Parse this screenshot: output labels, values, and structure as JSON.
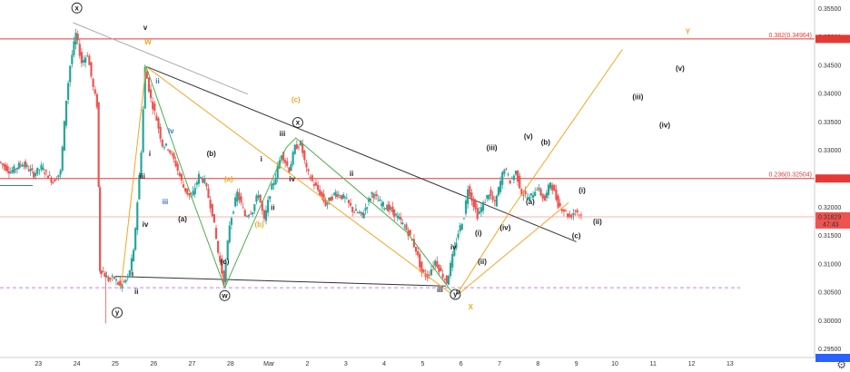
{
  "chart_data": {
    "type": "candlestick",
    "x_ticks": [
      "23",
      "24",
      "25",
      "26",
      "27",
      "28",
      "Mar",
      "2",
      "3",
      "4",
      "5",
      "6",
      "7",
      "8",
      "9",
      "10",
      "11",
      "12",
      "13"
    ],
    "y_ticks": [
      "0.35500",
      "0.35000",
      "0.34500",
      "0.34000",
      "0.33500",
      "0.33000",
      "0.32500",
      "0.32000",
      "0.31500",
      "0.31000",
      "0.30500",
      "0.30000",
      "0.29500"
    ],
    "ylim": [
      0.2935,
      0.3565
    ],
    "last_price": {
      "label": "0.31829",
      "value": 0.31829,
      "countdown": "47:43"
    },
    "fib_levels": [
      {
        "label": "0.382(0.34964)",
        "value": 0.34964
      },
      {
        "label": "0.236(0.32504)",
        "value": 0.32504
      }
    ],
    "support_level": 0.3058,
    "price_path": [
      [
        22.0,
        0.328
      ],
      [
        22.3,
        0.3262
      ],
      [
        22.6,
        0.3278
      ],
      [
        22.9,
        0.3258
      ],
      [
        23.1,
        0.327
      ],
      [
        23.4,
        0.3245
      ],
      [
        23.6,
        0.3262
      ],
      [
        23.75,
        0.339
      ],
      [
        23.85,
        0.345
      ],
      [
        24.0,
        0.3505
      ],
      [
        24.15,
        0.3455
      ],
      [
        24.3,
        0.347
      ],
      [
        24.45,
        0.341
      ],
      [
        24.55,
        0.338
      ],
      [
        24.62,
        0.309
      ],
      [
        24.7,
        0.3085
      ],
      [
        24.85,
        0.3072
      ],
      [
        25.0,
        0.3075
      ],
      [
        25.15,
        0.306
      ],
      [
        25.35,
        0.3075
      ],
      [
        25.5,
        0.312
      ],
      [
        25.6,
        0.321
      ],
      [
        25.7,
        0.33
      ],
      [
        25.8,
        0.3445
      ],
      [
        25.95,
        0.339
      ],
      [
        26.1,
        0.3355
      ],
      [
        26.25,
        0.331
      ],
      [
        26.4,
        0.3305
      ],
      [
        26.6,
        0.3275
      ],
      [
        26.8,
        0.3235
      ],
      [
        27.0,
        0.3215
      ],
      [
        27.2,
        0.3255
      ],
      [
        27.35,
        0.3245
      ],
      [
        27.55,
        0.319
      ],
      [
        27.7,
        0.312
      ],
      [
        27.85,
        0.3068
      ],
      [
        28.0,
        0.317
      ],
      [
        28.2,
        0.3225
      ],
      [
        28.4,
        0.3185
      ],
      [
        28.6,
        0.3195
      ],
      [
        28.75,
        0.3225
      ],
      [
        28.9,
        0.3175
      ],
      [
        29.05,
        0.3225
      ],
      [
        29.2,
        0.3255
      ],
      [
        29.35,
        0.3295
      ],
      [
        29.55,
        0.3265
      ],
      [
        29.7,
        0.3305
      ],
      [
        29.85,
        0.3312
      ],
      [
        30.0,
        0.3265
      ],
      [
        30.15,
        0.3245
      ],
      [
        30.35,
        0.3225
      ],
      [
        30.5,
        0.3205
      ],
      [
        30.75,
        0.3225
      ],
      [
        31.0,
        0.3215
      ],
      [
        31.2,
        0.3195
      ],
      [
        31.45,
        0.3185
      ],
      [
        31.7,
        0.3225
      ],
      [
        31.95,
        0.3205
      ],
      [
        32.2,
        0.3195
      ],
      [
        32.45,
        0.3175
      ],
      [
        32.65,
        0.3155
      ],
      [
        32.85,
        0.3125
      ],
      [
        33.0,
        0.3085
      ],
      [
        33.15,
        0.3078
      ],
      [
        33.35,
        0.3105
      ],
      [
        33.5,
        0.3085
      ],
      [
        33.65,
        0.3068
      ],
      [
        33.8,
        0.3112
      ],
      [
        33.95,
        0.3155
      ],
      [
        34.1,
        0.3185
      ],
      [
        34.2,
        0.3235
      ],
      [
        34.35,
        0.3205
      ],
      [
        34.45,
        0.3185
      ],
      [
        34.6,
        0.3205
      ],
      [
        34.75,
        0.3225
      ],
      [
        34.9,
        0.3205
      ],
      [
        35.05,
        0.3245
      ],
      [
        35.15,
        0.327
      ],
      [
        35.3,
        0.3245
      ],
      [
        35.45,
        0.3262
      ],
      [
        35.6,
        0.3225
      ],
      [
        35.8,
        0.3215
      ],
      [
        36.0,
        0.3235
      ],
      [
        36.2,
        0.3212
      ],
      [
        36.35,
        0.3245
      ],
      [
        36.55,
        0.3205
      ],
      [
        36.7,
        0.3195
      ],
      [
        36.85,
        0.3182
      ],
      [
        37.0,
        0.3195
      ],
      [
        37.15,
        0.3185
      ]
    ],
    "trend_lines": [
      {
        "points": [
          [
            23.9,
            0.3525
          ],
          [
            28.45,
            0.3399
          ]
        ],
        "color": "#aaaaaa"
      },
      {
        "points": [
          [
            25.8,
            0.3448
          ],
          [
            37.0,
            0.3139
          ]
        ],
        "color": "#333333"
      },
      {
        "points": [
          [
            25.0,
            0.3078
          ],
          [
            33.6,
            0.3061
          ]
        ],
        "color": "#333333"
      }
    ],
    "wave_paths": [
      {
        "points": [
          [
            25.15,
            0.3058
          ],
          [
            25.8,
            0.3448
          ],
          [
            33.85,
            0.3042
          ],
          [
            36.8,
            0.3208
          ]
        ],
        "color": "#f5a623"
      },
      {
        "points": [
          [
            33.85,
            0.3042
          ],
          [
            35.3,
            0.3195
          ],
          [
            38.2,
            0.3478
          ]
        ],
        "color": "#f5a623"
      },
      {
        "points": [
          [
            25.8,
            0.3448
          ],
          [
            27.0,
            0.3215
          ],
          [
            27.85,
            0.3058
          ],
          [
            29.45,
            0.3305
          ],
          [
            29.7,
            0.3322
          ],
          [
            32.6,
            0.3155
          ],
          [
            33.85,
            0.3042
          ]
        ],
        "color": "#4caf50"
      }
    ],
    "wave_labels": [
      {
        "text": "(x)",
        "x": 24.0,
        "y": 0.3547,
        "circle": true,
        "color": "#222222"
      },
      {
        "text": "v",
        "x": 25.78,
        "y": 0.3512,
        "color": "#222222"
      },
      {
        "text": "W",
        "x": 25.85,
        "y": 0.3487,
        "color": "#f5a623"
      },
      {
        "text": "ii",
        "x": 26.1,
        "y": 0.3418,
        "color": "#4169e1"
      },
      {
        "text": "iv",
        "x": 26.45,
        "y": 0.333,
        "color": "#4169e1"
      },
      {
        "text": "iii",
        "x": 25.7,
        "y": 0.325,
        "color": "#222222"
      },
      {
        "text": "i",
        "x": 25.9,
        "y": 0.329,
        "color": "#222222"
      },
      {
        "text": "iii",
        "x": 26.3,
        "y": 0.3205,
        "color": "#4169e1"
      },
      {
        "text": "iv",
        "x": 25.78,
        "y": 0.3165,
        "color": "#222222"
      },
      {
        "text": "i",
        "x": 25.45,
        "y": 0.3078,
        "color": "#222222"
      },
      {
        "text": "ii",
        "x": 25.55,
        "y": 0.3047,
        "color": "#222222"
      },
      {
        "text": "(y)",
        "x": 25.05,
        "y": 0.301,
        "circle": true,
        "color": "#222222"
      },
      {
        "text": "(b)",
        "x": 27.5,
        "y": 0.329,
        "color": "#222222"
      },
      {
        "text": "(a)",
        "x": 26.75,
        "y": 0.3175,
        "color": "#222222"
      },
      {
        "text": "(a)",
        "x": 27.95,
        "y": 0.3245,
        "color": "#f5a623"
      },
      {
        "text": "(c)",
        "x": 27.85,
        "y": 0.31,
        "color": "#222222"
      },
      {
        "text": "(w)",
        "x": 27.85,
        "y": 0.304,
        "circle": true,
        "color": "#222222"
      },
      {
        "text": "(b)",
        "x": 28.75,
        "y": 0.3165,
        "color": "#f5a623"
      },
      {
        "text": "i",
        "x": 28.8,
        "y": 0.328,
        "color": "#222222"
      },
      {
        "text": "ii",
        "x": 29.1,
        "y": 0.3195,
        "color": "#222222"
      },
      {
        "text": "iii",
        "x": 29.35,
        "y": 0.3325,
        "color": "#222222"
      },
      {
        "text": "iv",
        "x": 29.6,
        "y": 0.3245,
        "color": "#222222"
      },
      {
        "text": "(c)",
        "x": 29.7,
        "y": 0.3385,
        "color": "#f5a623"
      },
      {
        "text": "(x)",
        "x": 29.75,
        "y": 0.3345,
        "circle": true,
        "color": "#222222"
      },
      {
        "text": "ii",
        "x": 31.15,
        "y": 0.3255,
        "color": "#222222"
      },
      {
        "text": "iii",
        "x": 33.45,
        "y": 0.305,
        "color": "#222222"
      },
      {
        "text": "iv",
        "x": 33.8,
        "y": 0.3125,
        "color": "#222222"
      },
      {
        "text": "(y)",
        "x": 33.85,
        "y": 0.3042,
        "circle": true,
        "color": "#222222"
      },
      {
        "text": "v",
        "x": 33.92,
        "y": 0.3046,
        "color": "#222222"
      },
      {
        "text": "X",
        "x": 34.25,
        "y": 0.302,
        "color": "#f5a623"
      },
      {
        "text": "(i)",
        "x": 34.45,
        "y": 0.315,
        "color": "#222222"
      },
      {
        "text": "(ii)",
        "x": 34.55,
        "y": 0.31,
        "color": "#222222"
      },
      {
        "text": "(iii)",
        "x": 34.8,
        "y": 0.33,
        "color": "#222222"
      },
      {
        "text": "(iv)",
        "x": 35.15,
        "y": 0.316,
        "color": "#222222"
      },
      {
        "text": "(v)",
        "x": 35.75,
        "y": 0.332,
        "color": "#222222"
      },
      {
        "text": "(a)",
        "x": 35.8,
        "y": 0.3205,
        "color": "#222222"
      },
      {
        "text": "(b)",
        "x": 36.2,
        "y": 0.331,
        "color": "#222222"
      },
      {
        "text": "(c)",
        "x": 37.0,
        "y": 0.3145,
        "color": "#222222"
      },
      {
        "text": "(i)",
        "x": 37.15,
        "y": 0.3225,
        "color": "#222222"
      },
      {
        "text": "(ii)",
        "x": 37.55,
        "y": 0.317,
        "color": "#222222"
      },
      {
        "text": "(iii)",
        "x": 38.6,
        "y": 0.339,
        "color": "#222222"
      },
      {
        "text": "(iv)",
        "x": 39.3,
        "y": 0.334,
        "color": "#222222"
      },
      {
        "text": "(v)",
        "x": 39.7,
        "y": 0.344,
        "color": "#222222"
      },
      {
        "text": "Y",
        "x": 39.9,
        "y": 0.3505,
        "color": "#f5a623"
      }
    ]
  },
  "colors": {
    "up": "#26a69a",
    "down": "#ef5350",
    "fib": "#e53935",
    "support": "#c77dff",
    "price_tag": "#ef5350"
  },
  "settings_icon": "gear-icon"
}
